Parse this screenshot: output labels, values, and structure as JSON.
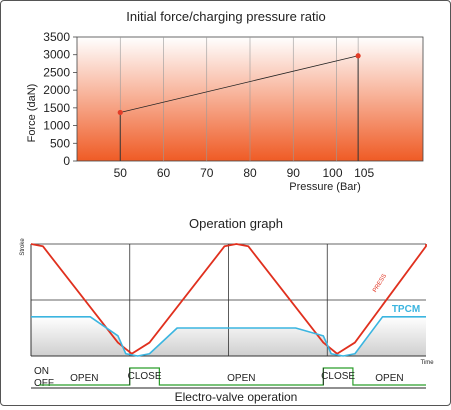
{
  "chart_data": [
    {
      "type": "line",
      "title": "Initial force/charging pressure ratio",
      "xlabel": "Pressure (Bar)",
      "ylabel": "Force (daN)",
      "xlim": [
        40,
        120
      ],
      "ylim": [
        0,
        3500
      ],
      "x_ticks": [
        50,
        60,
        70,
        80,
        90,
        100,
        105
      ],
      "x_tick_labels": [
        "50",
        "60",
        "70",
        "80",
        "90",
        "100",
        "105"
      ],
      "y_ticks": [
        0,
        500,
        1000,
        1500,
        2000,
        2500,
        3000,
        3500
      ],
      "y_tick_labels": [
        "0",
        "500",
        "1000",
        "1500",
        "2000",
        "2500",
        "3000",
        "3500"
      ],
      "grid": "vertical",
      "colors": {
        "point": "#e23d28",
        "line": "#222222",
        "gradient_top": "#ffffff",
        "gradient_bottom": "#ef5b25"
      },
      "points": [
        {
          "x": 50,
          "y": 1370
        },
        {
          "x": 105,
          "y": 2970
        }
      ]
    },
    {
      "type": "line",
      "title": "Operation graph",
      "xlabel": "Time",
      "ylabel": "Stroke",
      "xlim": [
        0,
        100
      ],
      "ylim": [
        0,
        100
      ],
      "grid": "on",
      "colors": {
        "press": "#e0301e",
        "tpcm": "#3bb5e0",
        "valve": "#2a9d2a"
      },
      "series": [
        {
          "name": "PRESS",
          "x": [
            0,
            3,
            22,
            25.5,
            30,
            49,
            52,
            55,
            74,
            77.5,
            82,
            101,
            104
          ],
          "y": [
            100,
            98,
            12,
            2,
            12,
            98,
            100,
            98,
            12,
            2,
            12,
            98,
            100
          ]
        },
        {
          "name": "TPCM",
          "x": [
            0,
            15,
            22,
            24,
            27,
            30,
            37,
            52,
            67,
            74,
            76,
            79,
            82,
            89,
            104
          ],
          "y": [
            35,
            35,
            18,
            2,
            0,
            2,
            25,
            25,
            25,
            18,
            2,
            0,
            2,
            35,
            35
          ]
        }
      ],
      "fill_under": "TPCM",
      "valve": {
        "on_label": "ON",
        "off_label": "OFF",
        "caption": "Electro-valve operation",
        "segments": [
          {
            "label": "OPEN",
            "x0": 2,
            "x1": 25,
            "state": "off"
          },
          {
            "label": "CLOSE",
            "x0": 25,
            "x1": 32.5,
            "state": "on"
          },
          {
            "label": "OPEN",
            "x0": 32.5,
            "x1": 74,
            "state": "off"
          },
          {
            "label": "CLOSE",
            "x0": 74,
            "x1": 81.5,
            "state": "on"
          },
          {
            "label": "OPEN",
            "x0": 81.5,
            "x1": 104,
            "state": "off"
          }
        ]
      }
    }
  ]
}
